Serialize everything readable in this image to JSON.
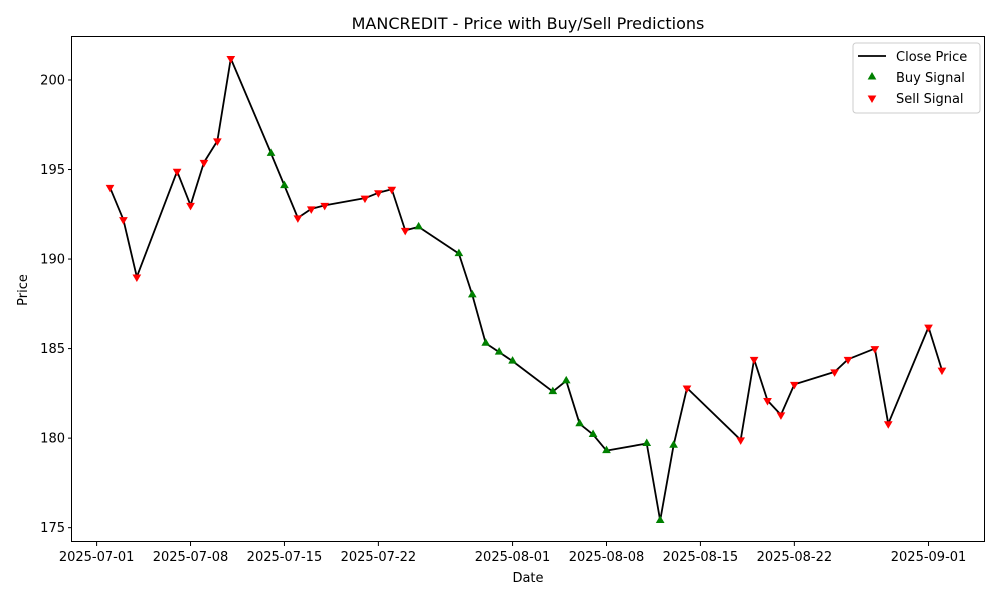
{
  "chart_data": {
    "type": "line",
    "title": "MANCREDIT - Price with Buy/Sell Predictions",
    "xlabel": "Date",
    "ylabel": "Price",
    "ylim": [
      174.2,
      202.4
    ],
    "xlim": [
      "2025-06-29T04:00",
      "2025-09-05T05:00"
    ],
    "x_ticks": [
      "2025-07-01",
      "2025-07-08",
      "2025-07-15",
      "2025-07-22",
      "2025-08-01",
      "2025-08-08",
      "2025-08-15",
      "2025-08-22",
      "2025-09-01"
    ],
    "y_ticks": [
      175,
      180,
      185,
      190,
      195,
      200
    ],
    "grid": false,
    "legend_position": "top-right",
    "colors": {
      "close": "#000000",
      "buy": "#008000",
      "sell": "#ff0000"
    },
    "series": [
      {
        "name": "Close Price",
        "type": "line",
        "points": [
          [
            "2025-07-02",
            194.0
          ],
          [
            "2025-07-03",
            192.2
          ],
          [
            "2025-07-04",
            189.0
          ],
          [
            "2025-07-07",
            194.9
          ],
          [
            "2025-07-08",
            193.0
          ],
          [
            "2025-07-09",
            195.4
          ],
          [
            "2025-07-10",
            196.6
          ],
          [
            "2025-07-11",
            201.2
          ],
          [
            "2025-07-14",
            195.9
          ],
          [
            "2025-07-15",
            194.1
          ],
          [
            "2025-07-16",
            192.3
          ],
          [
            "2025-07-17",
            192.8
          ],
          [
            "2025-07-18",
            193.0
          ],
          [
            "2025-07-21",
            193.4
          ],
          [
            "2025-07-22",
            193.7
          ],
          [
            "2025-07-23",
            193.9
          ],
          [
            "2025-07-24",
            191.6
          ],
          [
            "2025-07-25",
            191.8
          ],
          [
            "2025-07-28",
            190.3
          ],
          [
            "2025-07-29",
            188.0
          ],
          [
            "2025-07-30",
            185.3
          ],
          [
            "2025-07-31",
            184.8
          ],
          [
            "2025-08-01",
            184.3
          ],
          [
            "2025-08-04",
            182.6
          ],
          [
            "2025-08-05",
            183.2
          ],
          [
            "2025-08-06",
            180.8
          ],
          [
            "2025-08-07",
            180.2
          ],
          [
            "2025-08-08",
            179.3
          ],
          [
            "2025-08-11",
            179.7
          ],
          [
            "2025-08-12",
            175.4
          ],
          [
            "2025-08-13",
            179.6
          ],
          [
            "2025-08-14",
            182.8
          ],
          [
            "2025-08-18",
            179.9
          ],
          [
            "2025-08-19",
            184.4
          ],
          [
            "2025-08-20",
            182.1
          ],
          [
            "2025-08-21",
            181.3
          ],
          [
            "2025-08-22",
            183.0
          ],
          [
            "2025-08-25",
            183.7
          ],
          [
            "2025-08-26",
            184.4
          ],
          [
            "2025-08-28",
            185.0
          ],
          [
            "2025-08-29",
            180.8
          ],
          [
            "2025-09-01",
            186.2
          ],
          [
            "2025-09-02",
            183.8
          ]
        ]
      },
      {
        "name": "Buy Signal",
        "type": "scatter",
        "marker": "triangle-up",
        "points": [
          [
            "2025-07-14",
            195.9
          ],
          [
            "2025-07-15",
            194.1
          ],
          [
            "2025-07-25",
            191.8
          ],
          [
            "2025-07-28",
            190.3
          ],
          [
            "2025-07-29",
            188.0
          ],
          [
            "2025-07-30",
            185.3
          ],
          [
            "2025-07-31",
            184.8
          ],
          [
            "2025-08-01",
            184.3
          ],
          [
            "2025-08-04",
            182.6
          ],
          [
            "2025-08-05",
            183.2
          ],
          [
            "2025-08-06",
            180.8
          ],
          [
            "2025-08-07",
            180.2
          ],
          [
            "2025-08-08",
            179.3
          ],
          [
            "2025-08-11",
            179.7
          ],
          [
            "2025-08-12",
            175.4
          ],
          [
            "2025-08-13",
            179.6
          ]
        ]
      },
      {
        "name": "Sell Signal",
        "type": "scatter",
        "marker": "triangle-down",
        "points": [
          [
            "2025-07-02",
            194.0
          ],
          [
            "2025-07-03",
            192.2
          ],
          [
            "2025-07-04",
            189.0
          ],
          [
            "2025-07-07",
            194.9
          ],
          [
            "2025-07-08",
            193.0
          ],
          [
            "2025-07-09",
            195.4
          ],
          [
            "2025-07-10",
            196.6
          ],
          [
            "2025-07-11",
            201.2
          ],
          [
            "2025-07-16",
            192.3
          ],
          [
            "2025-07-17",
            192.8
          ],
          [
            "2025-07-18",
            193.0
          ],
          [
            "2025-07-21",
            193.4
          ],
          [
            "2025-07-22",
            193.7
          ],
          [
            "2025-07-23",
            193.9
          ],
          [
            "2025-07-24",
            191.6
          ],
          [
            "2025-08-14",
            182.8
          ],
          [
            "2025-08-18",
            179.9
          ],
          [
            "2025-08-19",
            184.4
          ],
          [
            "2025-08-20",
            182.1
          ],
          [
            "2025-08-21",
            181.3
          ],
          [
            "2025-08-22",
            183.0
          ],
          [
            "2025-08-25",
            183.7
          ],
          [
            "2025-08-26",
            184.4
          ],
          [
            "2025-08-28",
            185.0
          ],
          [
            "2025-08-29",
            180.8
          ],
          [
            "2025-09-01",
            186.2
          ],
          [
            "2025-09-02",
            183.8
          ]
        ]
      }
    ]
  }
}
